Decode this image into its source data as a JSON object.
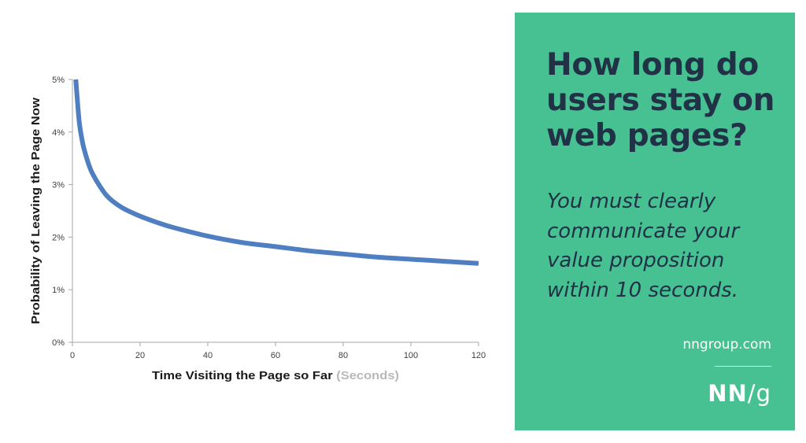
{
  "chart_data": {
    "type": "line",
    "title": "",
    "xlabel": "Time Visiting the Page so Far",
    "xlabel_suffix": "(Seconds)",
    "ylabel": "Probability of Leaving  the Page Now",
    "xlim": [
      0,
      120
    ],
    "ylim": [
      0,
      5
    ],
    "x_ticks": [
      "0",
      "20",
      "40",
      "60",
      "80",
      "100",
      "120"
    ],
    "y_ticks": [
      "0%",
      "1%",
      "2%",
      "3%",
      "4%",
      "5%"
    ],
    "grid": false,
    "legend": "none",
    "series": [
      {
        "color": "#4f7fc0",
        "x": [
          1,
          2,
          3,
          4,
          5,
          6,
          8,
          10,
          12,
          15,
          20,
          25,
          30,
          40,
          50,
          60,
          70,
          80,
          90,
          100,
          110,
          120
        ],
        "y": [
          5.0,
          4.2,
          3.8,
          3.55,
          3.35,
          3.2,
          2.98,
          2.8,
          2.68,
          2.55,
          2.4,
          2.28,
          2.18,
          2.02,
          1.9,
          1.82,
          1.74,
          1.68,
          1.62,
          1.58,
          1.54,
          1.5
        ]
      }
    ]
  },
  "panel": {
    "background": "#47c092",
    "headline": "How long do users stay on web pages?",
    "subhead": "You must clearly communicate your value proposition within 10 seconds.",
    "site_url": "nngroup.com",
    "logo_bold": "NN",
    "logo_slash": "/",
    "logo_suffix": "g"
  }
}
